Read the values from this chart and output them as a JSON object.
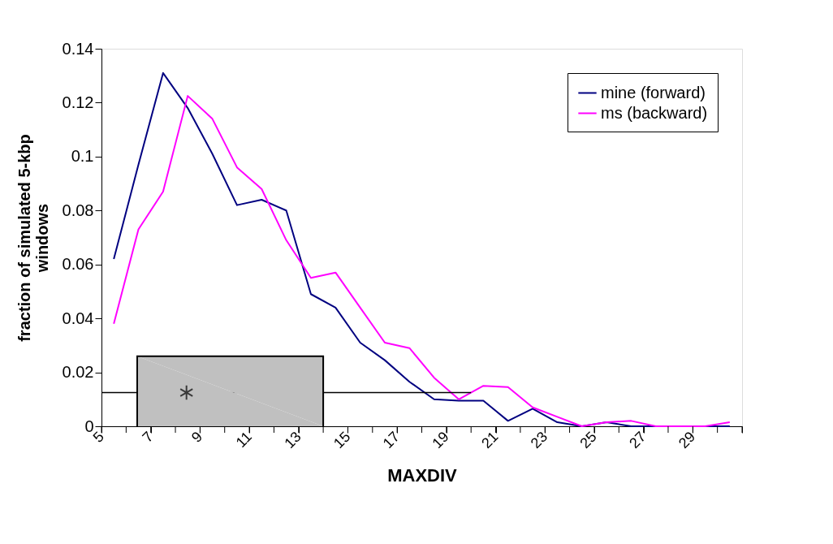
{
  "chart_data": {
    "type": "line",
    "xlabel": "MAXDIV",
    "ylabel": "fraction of simulated 5-kbp windows",
    "x": [
      5.5,
      6.5,
      7.5,
      8.5,
      9.5,
      10.5,
      11.5,
      12.5,
      13.5,
      14.5,
      15.5,
      16.5,
      17.5,
      18.5,
      19.5,
      20.5,
      21.5,
      22.5,
      23.5,
      24.5,
      25.5,
      26.5,
      27.5,
      28.5,
      29.5,
      30.5
    ],
    "series": [
      {
        "name": "mine (forward)",
        "color": "#000080",
        "values": [
          0.062,
          0.097,
          0.131,
          0.118,
          0.101,
          0.082,
          0.084,
          0.08,
          0.049,
          0.044,
          0.031,
          0.0245,
          0.0165,
          0.01,
          0.0095,
          0.0095,
          0.002,
          0.0065,
          0.0015,
          0,
          0.0015,
          0,
          0,
          0,
          0,
          0
        ]
      },
      {
        "name": "ms (backward)",
        "color": "#ff00ff",
        "values": [
          0.038,
          0.073,
          0.087,
          0.1225,
          0.114,
          0.096,
          0.088,
          0.069,
          0.055,
          0.057,
          0.044,
          0.031,
          0.029,
          0.018,
          0.01,
          0.015,
          0.0145,
          0.007,
          0.0035,
          0,
          0.0015,
          0.002,
          0,
          0,
          0,
          0.0015
        ]
      },
      {
        "type": "line",
        "color": "#000000",
        "x": [
          5,
          20
        ],
        "values": [
          0.0125,
          0.0125
        ]
      },
      {
        "type": "area",
        "color": "#c0c0c0",
        "x": [
          6.45,
          6.45,
          14,
          14
        ],
        "values": [
          0,
          0.026,
          0.026,
          0
        ]
      },
      {
        "type": "scatter",
        "color": "#000000",
        "marker": "cross",
        "x": [
          8.45
        ],
        "values": [
          0.0125
        ]
      }
    ],
    "xlim": [
      5,
      31
    ],
    "xticks": [
      5,
      {
        "value": 6,
        "label": null
      },
      7,
      {
        "value": 8,
        "label": null
      },
      9,
      {
        "value": 10,
        "label": null
      },
      11,
      {
        "value": 12,
        "label": null
      },
      13,
      {
        "value": 14,
        "label": null
      },
      15,
      {
        "value": 16,
        "label": null
      },
      17,
      {
        "value": 18,
        "label": null
      },
      19,
      {
        "value": 20,
        "label": null
      },
      21,
      {
        "value": 22,
        "label": null
      },
      23,
      {
        "value": 24,
        "label": null
      },
      25,
      {
        "value": 26,
        "label": null
      },
      27,
      {
        "value": 28,
        "label": null
      },
      29,
      {
        "value": 30,
        "label": null
      },
      {
        "value": 31,
        "label": null
      }
    ],
    "ylim": [
      0,
      0.14
    ],
    "yticks": [
      0,
      0.02,
      0.04,
      0.06,
      0.08,
      0.1,
      0.12,
      0.14
    ],
    "grid": false,
    "legend": "top right",
    "marker": "none",
    "line_style": "solid"
  }
}
